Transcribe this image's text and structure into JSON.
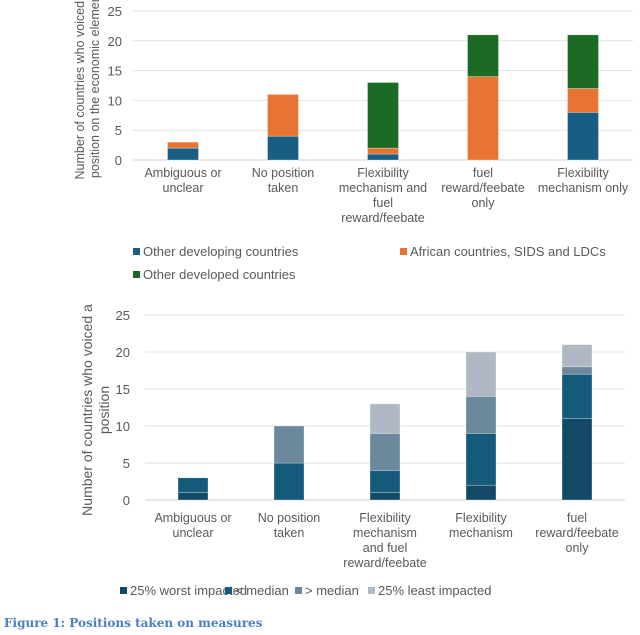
{
  "chart_data": [
    {
      "type": "bar",
      "stacked": true,
      "ylabel": "Number of countries who voiced a position on the economic element",
      "ylim": [
        0,
        25
      ],
      "yticks": [
        0,
        5,
        10,
        15,
        20,
        25
      ],
      "grid": true,
      "legend_position": "bottom",
      "categories": [
        "Ambiguous or unclear",
        "No position taken",
        "Flexibility mechanism and fuel reward/feebate",
        "fuel reward/feebate only",
        "Flexibility mechanism only"
      ],
      "category_lines": [
        [
          "Ambiguous or",
          "unclear"
        ],
        [
          "No position",
          "taken"
        ],
        [
          "Flexibility",
          "mechanism and",
          "fuel",
          "reward/feebate"
        ],
        [
          "fuel",
          "reward/feebate",
          "only"
        ],
        [
          "Flexibility",
          "mechanism only"
        ]
      ],
      "series": [
        {
          "name": "Other developing countries",
          "color": "#175e82",
          "values": [
            2,
            4,
            1,
            0,
            8
          ]
        },
        {
          "name": "African countries, SIDS and LDCs",
          "color": "#e87434",
          "values": [
            1,
            7,
            1,
            14,
            4
          ]
        },
        {
          "name": "Other developed countries",
          "color": "#1b6b24",
          "values": [
            0,
            0,
            11,
            7,
            9
          ]
        }
      ]
    },
    {
      "type": "bar",
      "stacked": true,
      "ylabel": "Number of countries who voiced a position",
      "ylim": [
        0,
        25
      ],
      "yticks": [
        0,
        5,
        10,
        15,
        20,
        25
      ],
      "grid": true,
      "legend_position": "bottom",
      "categories": [
        "Ambiguous or unclear",
        "No position taken",
        "Flexibility mechanism and fuel reward/feebate",
        "Flexibility mechanism",
        "fuel reward/feebate only"
      ],
      "category_lines": [
        [
          "Ambiguous or",
          "unclear"
        ],
        [
          "No position",
          "taken"
        ],
        [
          "Flexibility",
          "mechanism",
          "and fuel",
          "reward/feebate"
        ],
        [
          "Flexibility",
          "mechanism"
        ],
        [
          "fuel",
          "reward/feebate",
          "only"
        ]
      ],
      "series": [
        {
          "name": "25% worst impacted",
          "color": "#124a66",
          "values": [
            1,
            0,
            1,
            2,
            11
          ]
        },
        {
          "name": "< median",
          "color": "#155a7b",
          "values": [
            2,
            5,
            3,
            7,
            6
          ]
        },
        {
          "name": "> median",
          "color": "#6b889c",
          "values": [
            0,
            5,
            5,
            5,
            1
          ]
        },
        {
          "name": "25% least impacted",
          "color": "#b0b9c3",
          "values": [
            0,
            0,
            4,
            6,
            3
          ]
        }
      ]
    }
  ],
  "caption": "Figure 1: Positions taken on measures"
}
